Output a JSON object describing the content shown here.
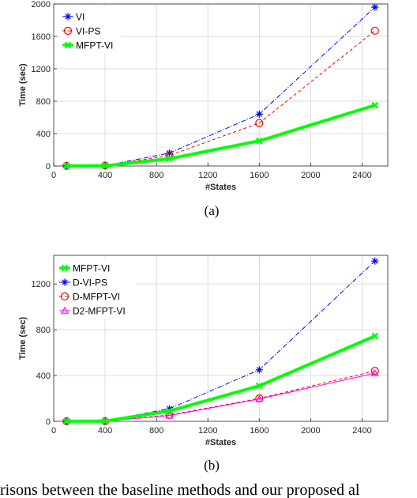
{
  "chart_data": [
    {
      "type": "line",
      "caption": "(a)",
      "xlabel": "#States",
      "ylabel": "Time (sec)",
      "xlim": [
        0,
        2600
      ],
      "ylim": [
        0,
        2000
      ],
      "xticks": [
        0,
        400,
        800,
        1200,
        1600,
        2000,
        2400
      ],
      "yticks": [
        0,
        400,
        800,
        1200,
        1600,
        2000
      ],
      "grid": true,
      "legend_position": "top-left",
      "x": [
        100,
        400,
        900,
        1600,
        2500
      ],
      "series": [
        {
          "name": "VI",
          "values": [
            2,
            5,
            160,
            640,
            1960
          ],
          "color": "#0000ff",
          "style": "dashdot",
          "marker": "star",
          "width": 1
        },
        {
          "name": "VI-PS",
          "values": [
            2,
            5,
            130,
            530,
            1670
          ],
          "color": "#ff0000",
          "style": "dashed",
          "marker": "circle",
          "width": 1
        },
        {
          "name": "MFPT-VI",
          "values": [
            1,
            2,
            90,
            310,
            750
          ],
          "color": "#00ff00",
          "style": "solid",
          "marker": "x",
          "width": 4
        }
      ]
    },
    {
      "type": "line",
      "caption": "(b)",
      "xlabel": "#States",
      "ylabel": "Time (sec)",
      "xlim": [
        0,
        2600
      ],
      "ylim": [
        0,
        1450
      ],
      "xticks": [
        0,
        400,
        800,
        1200,
        1600,
        2000,
        2400
      ],
      "yticks": [
        0,
        400,
        800,
        1200
      ],
      "grid": true,
      "legend_position": "top-left",
      "x": [
        100,
        400,
        900,
        1600,
        2500
      ],
      "series": [
        {
          "name": "MFPT-VI",
          "values": [
            1,
            2,
            90,
            310,
            745
          ],
          "color": "#00ff00",
          "style": "solid",
          "marker": "x",
          "width": 4
        },
        {
          "name": "D-VI-PS",
          "values": [
            2,
            5,
            110,
            450,
            1400
          ],
          "color": "#0000ff",
          "style": "dashdot",
          "marker": "star",
          "width": 1
        },
        {
          "name": "D-MFPT-VI",
          "values": [
            1,
            2,
            55,
            200,
            440
          ],
          "color": "#ff0000",
          "style": "dashed",
          "marker": "circle",
          "width": 1
        },
        {
          "name": "D2-MFPT-VI",
          "values": [
            1,
            2,
            50,
            195,
            420
          ],
          "color": "#ff00ff",
          "style": "solid",
          "marker": "triangle",
          "width": 1
        }
      ]
    }
  ],
  "bottom_text": "risons between the baseline methods and our proposed al"
}
